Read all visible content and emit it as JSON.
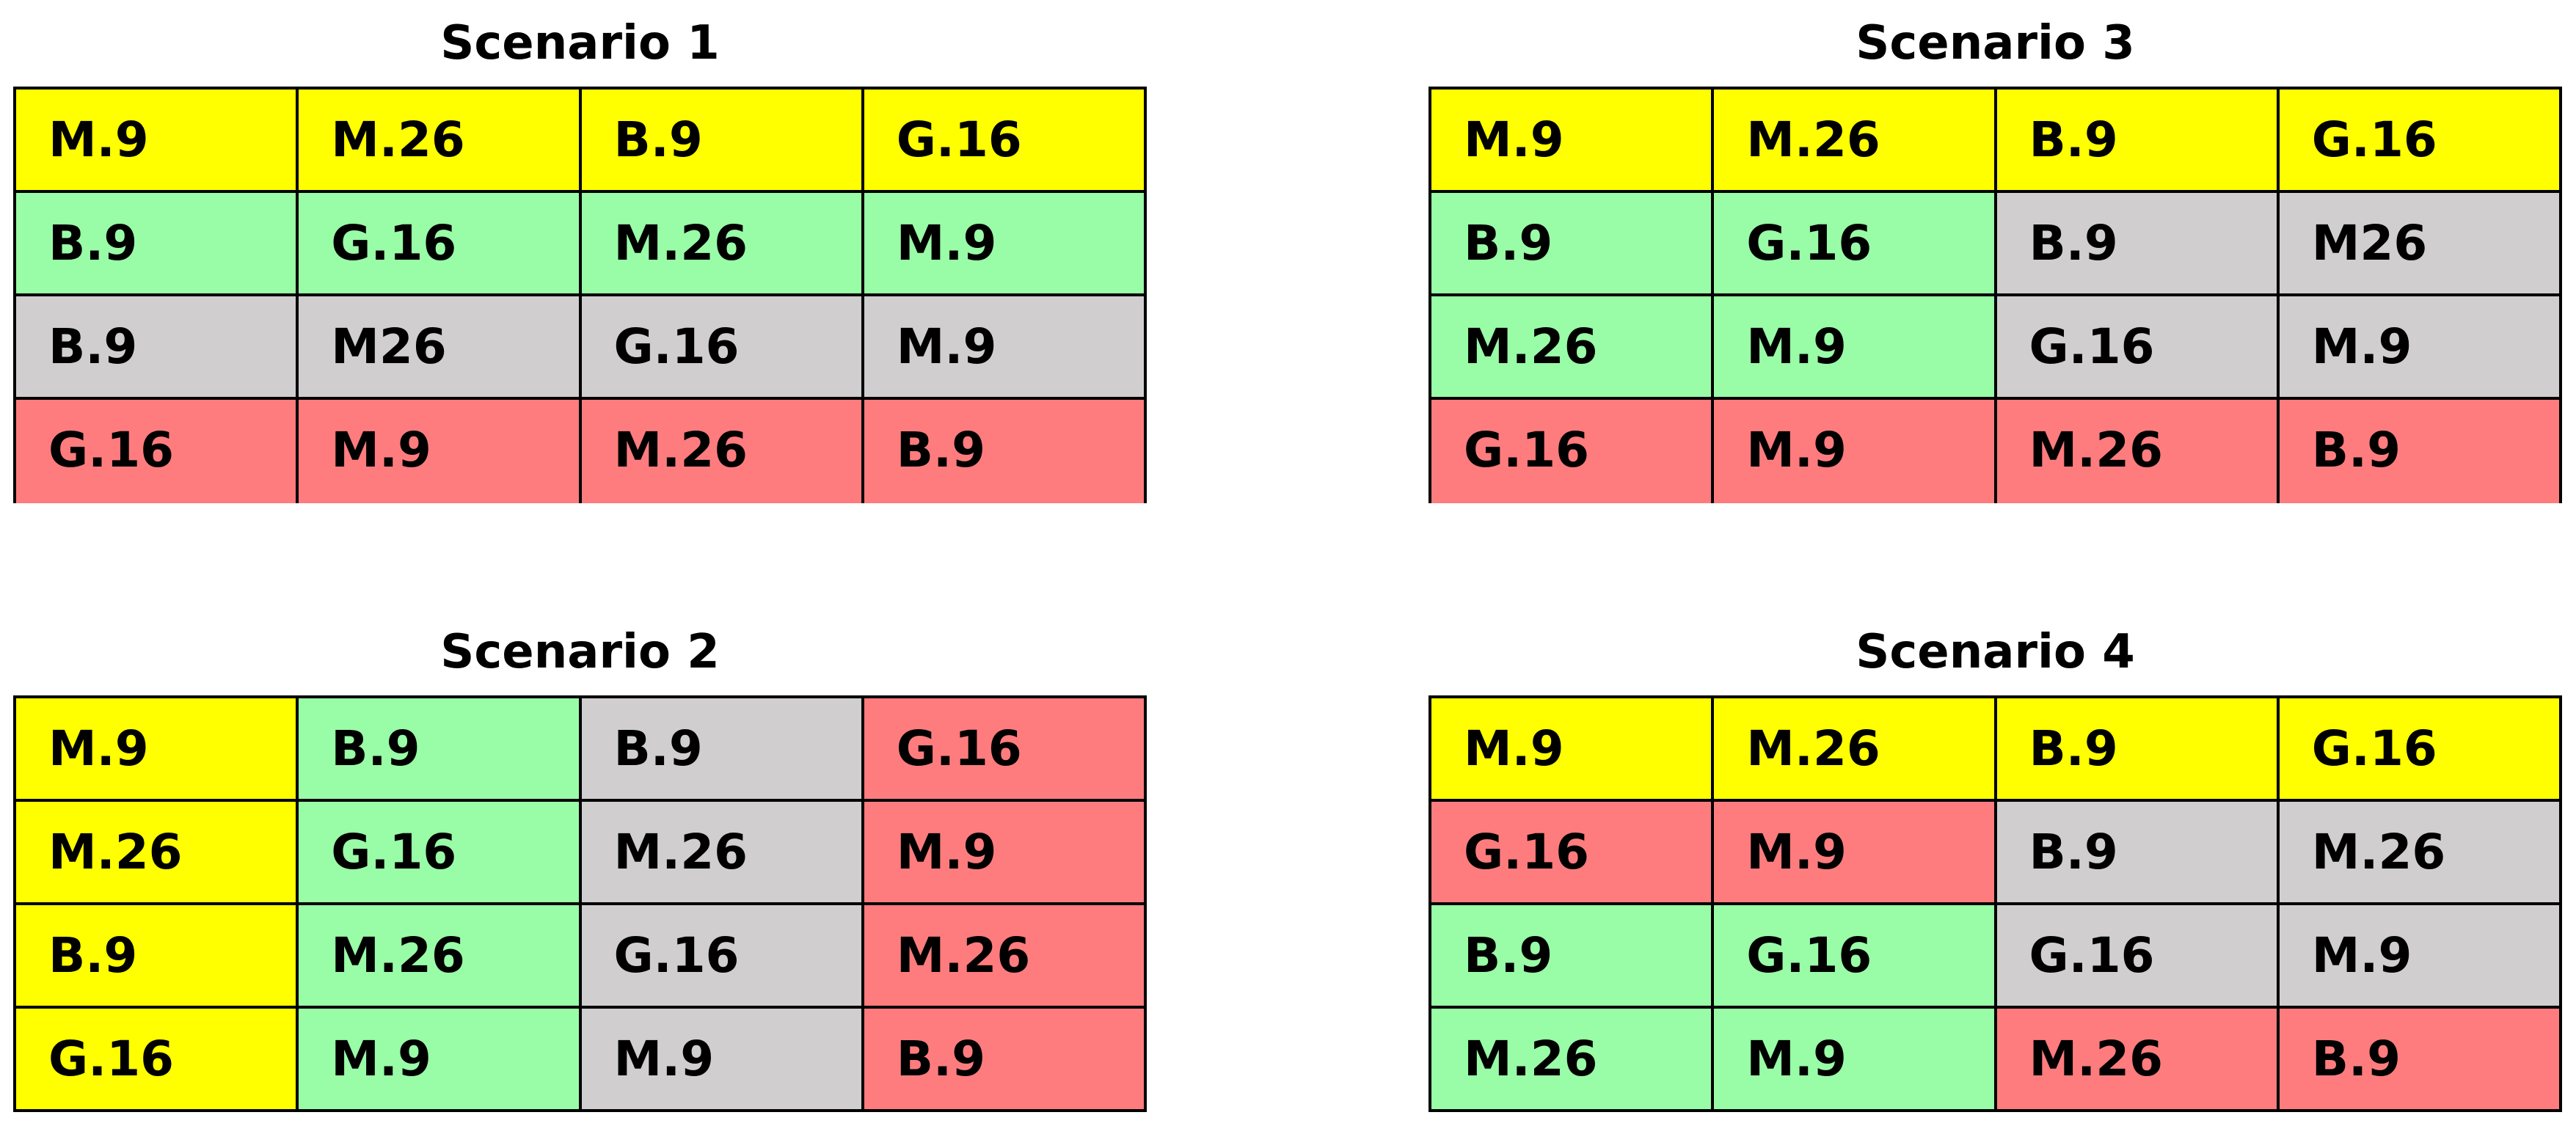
{
  "colors": {
    "yellow": "#ffff00",
    "green": "#99fca7",
    "gray": "#d0cecf",
    "red": "#ff7c7e",
    "border": "#000000"
  },
  "scenarios": [
    {
      "title": "Scenario 1",
      "rows": [
        [
          {
            "label": "M.9",
            "color": "yellow"
          },
          {
            "label": "M.26",
            "color": "yellow"
          },
          {
            "label": "B.9",
            "color": "yellow"
          },
          {
            "label": "G.16",
            "color": "yellow"
          }
        ],
        [
          {
            "label": "B.9",
            "color": "green"
          },
          {
            "label": "G.16",
            "color": "green"
          },
          {
            "label": "M.26",
            "color": "green"
          },
          {
            "label": "M.9",
            "color": "green"
          }
        ],
        [
          {
            "label": "B.9",
            "color": "gray"
          },
          {
            "label": "M26",
            "color": "gray"
          },
          {
            "label": "G.16",
            "color": "gray"
          },
          {
            "label": "M.9",
            "color": "gray"
          }
        ],
        [
          {
            "label": "G.16",
            "color": "red"
          },
          {
            "label": "M.9",
            "color": "red"
          },
          {
            "label": "M.26",
            "color": "red"
          },
          {
            "label": "B.9",
            "color": "red"
          }
        ]
      ]
    },
    {
      "title": "Scenario 2",
      "rows": [
        [
          {
            "label": "M.9",
            "color": "yellow"
          },
          {
            "label": "B.9",
            "color": "green"
          },
          {
            "label": "B.9",
            "color": "gray"
          },
          {
            "label": "G.16",
            "color": "red"
          }
        ],
        [
          {
            "label": "M.26",
            "color": "yellow"
          },
          {
            "label": "G.16",
            "color": "green"
          },
          {
            "label": "M.26",
            "color": "gray"
          },
          {
            "label": "M.9",
            "color": "red"
          }
        ],
        [
          {
            "label": "B.9",
            "color": "yellow"
          },
          {
            "label": "M.26",
            "color": "green"
          },
          {
            "label": "G.16",
            "color": "gray"
          },
          {
            "label": "M.26",
            "color": "red"
          }
        ],
        [
          {
            "label": "G.16",
            "color": "yellow"
          },
          {
            "label": "M.9",
            "color": "green"
          },
          {
            "label": "M.9",
            "color": "gray"
          },
          {
            "label": "B.9",
            "color": "red"
          }
        ]
      ]
    },
    {
      "title": "Scenario 3",
      "rows": [
        [
          {
            "label": "M.9",
            "color": "yellow"
          },
          {
            "label": "M.26",
            "color": "yellow"
          },
          {
            "label": "B.9",
            "color": "yellow"
          },
          {
            "label": "G.16",
            "color": "yellow"
          }
        ],
        [
          {
            "label": "B.9",
            "color": "green"
          },
          {
            "label": "G.16",
            "color": "green"
          },
          {
            "label": "B.9",
            "color": "gray"
          },
          {
            "label": "M26",
            "color": "gray"
          }
        ],
        [
          {
            "label": "M.26",
            "color": "green"
          },
          {
            "label": "M.9",
            "color": "green"
          },
          {
            "label": "G.16",
            "color": "gray"
          },
          {
            "label": "M.9",
            "color": "gray"
          }
        ],
        [
          {
            "label": "G.16",
            "color": "red"
          },
          {
            "label": "M.9",
            "color": "red"
          },
          {
            "label": "M.26",
            "color": "red"
          },
          {
            "label": "B.9",
            "color": "red"
          }
        ]
      ]
    },
    {
      "title": "Scenario 4",
      "rows": [
        [
          {
            "label": "M.9",
            "color": "yellow"
          },
          {
            "label": "M.26",
            "color": "yellow"
          },
          {
            "label": "B.9",
            "color": "yellow"
          },
          {
            "label": "G.16",
            "color": "yellow"
          }
        ],
        [
          {
            "label": "G.16",
            "color": "red"
          },
          {
            "label": "M.9",
            "color": "red"
          },
          {
            "label": "B.9",
            "color": "gray"
          },
          {
            "label": "M.26",
            "color": "gray"
          }
        ],
        [
          {
            "label": "B.9",
            "color": "green"
          },
          {
            "label": "G.16",
            "color": "green"
          },
          {
            "label": "G.16",
            "color": "gray"
          },
          {
            "label": "M.9",
            "color": "gray"
          }
        ],
        [
          {
            "label": "M.26",
            "color": "green"
          },
          {
            "label": "M.9",
            "color": "green"
          },
          {
            "label": "M.26",
            "color": "red"
          },
          {
            "label": "B.9",
            "color": "red"
          }
        ]
      ]
    }
  ]
}
